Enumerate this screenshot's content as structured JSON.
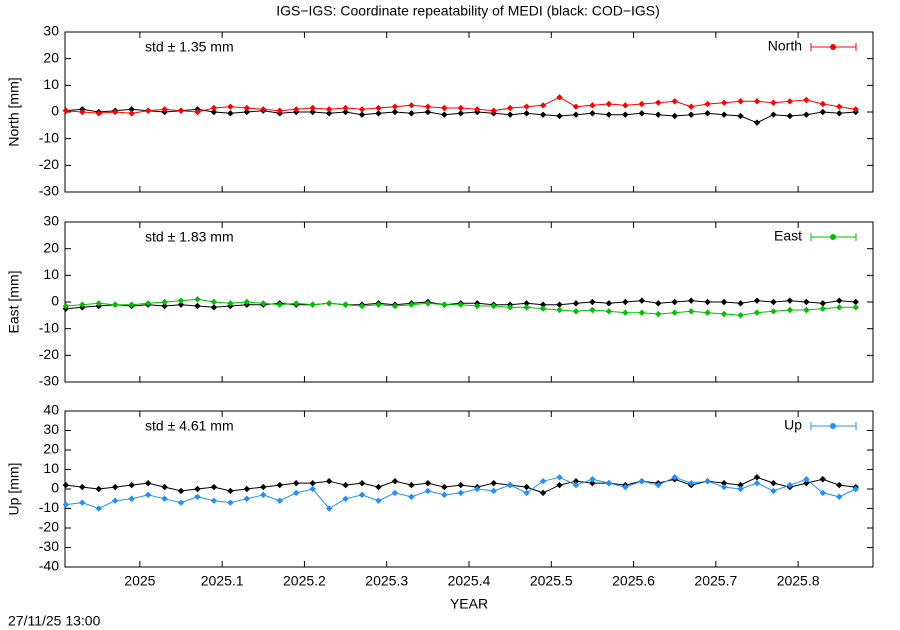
{
  "title": "IGS−IGS: Coordinate repeatability of MEDI (black: COD−IGS)",
  "footer": "27/11/25 13:00",
  "chart_data": [
    {
      "type": "line",
      "ylabel": "North [mm]",
      "annotation": "std ± 1.35 mm",
      "legend": "upper right",
      "xlim": [
        2024.909,
        2025.891
      ],
      "xticks": [
        2025,
        2025.1,
        2025.2,
        2025.3,
        2025.4,
        2025.5,
        2025.6,
        2025.7,
        2025.8
      ],
      "ylim": [
        -30,
        30
      ],
      "yticks": [
        -30,
        -20,
        -10,
        0,
        10,
        20,
        30
      ],
      "x": [
        2024.91,
        2024.93,
        2024.95,
        2024.97,
        2024.99,
        2025.01,
        2025.03,
        2025.05,
        2025.07,
        2025.09,
        2025.11,
        2025.13,
        2025.15,
        2025.17,
        2025.19,
        2025.21,
        2025.23,
        2025.25,
        2025.27,
        2025.29,
        2025.31,
        2025.33,
        2025.35,
        2025.37,
        2025.39,
        2025.41,
        2025.43,
        2025.45,
        2025.47,
        2025.49,
        2025.51,
        2025.53,
        2025.55,
        2025.57,
        2025.59,
        2025.61,
        2025.63,
        2025.65,
        2025.67,
        2025.69,
        2025.71,
        2025.73,
        2025.75,
        2025.77,
        2025.79,
        2025.81,
        2025.83,
        2025.85,
        2025.87
      ],
      "series": [
        {
          "color": "#000000",
          "values": [
            0.5,
            1,
            0,
            0.5,
            1,
            0.5,
            0,
            0.5,
            1,
            0,
            -0.5,
            0,
            0.5,
            -0.5,
            0,
            0,
            -0.5,
            0,
            -1,
            -0.5,
            0,
            -0.5,
            0,
            -1,
            -0.5,
            0,
            -0.5,
            -1,
            -0.5,
            -1,
            -1.5,
            -1,
            -0.5,
            -1,
            -1,
            -0.5,
            -1,
            -1.5,
            -1,
            -0.5,
            -1,
            -1.5,
            -4,
            -1,
            -1.5,
            -1,
            0,
            -0.5,
            0
          ]
        },
        {
          "name": "North",
          "color": "#ff0000",
          "values": [
            0.5,
            0,
            -0.5,
            0,
            -0.5,
            0.5,
            1,
            0.5,
            0,
            1.5,
            2,
            1.5,
            1,
            0.5,
            1,
            1.5,
            1,
            1.5,
            1,
            1.5,
            2,
            2.5,
            2,
            1.5,
            1.5,
            1,
            0.5,
            1.5,
            2,
            2.5,
            5.5,
            2,
            2.5,
            3,
            2.5,
            3,
            3.5,
            4,
            2,
            3,
            3.5,
            4,
            4,
            3.5,
            4,
            4.5,
            3,
            2,
            1
          ]
        }
      ]
    },
    {
      "type": "line",
      "ylabel": "East [mm]",
      "annotation": "std ± 1.83 mm",
      "legend": "upper right",
      "xlim": [
        2024.909,
        2025.891
      ],
      "xticks": [
        2025,
        2025.1,
        2025.2,
        2025.3,
        2025.4,
        2025.5,
        2025.6,
        2025.7,
        2025.8
      ],
      "ylim": [
        -30,
        30
      ],
      "yticks": [
        -30,
        -20,
        -10,
        0,
        10,
        20,
        30
      ],
      "x": [
        2024.91,
        2024.93,
        2024.95,
        2024.97,
        2024.99,
        2025.01,
        2025.03,
        2025.05,
        2025.07,
        2025.09,
        2025.11,
        2025.13,
        2025.15,
        2025.17,
        2025.19,
        2025.21,
        2025.23,
        2025.25,
        2025.27,
        2025.29,
        2025.31,
        2025.33,
        2025.35,
        2025.37,
        2025.39,
        2025.41,
        2025.43,
        2025.45,
        2025.47,
        2025.49,
        2025.51,
        2025.53,
        2025.55,
        2025.57,
        2025.59,
        2025.61,
        2025.63,
        2025.65,
        2025.67,
        2025.69,
        2025.71,
        2025.73,
        2025.75,
        2025.77,
        2025.79,
        2025.81,
        2025.83,
        2025.85,
        2025.87
      ],
      "series": [
        {
          "color": "#000000",
          "values": [
            -2.5,
            -2,
            -1.5,
            -1,
            -1.5,
            -1,
            -1.5,
            -1,
            -1.5,
            -2,
            -1.5,
            -1,
            -1,
            -0.5,
            -1,
            -1,
            -0.5,
            -1,
            -1,
            -0.5,
            -1,
            -0.5,
            0,
            -1,
            -0.5,
            -0.5,
            -1,
            -1,
            -0.5,
            -1,
            -1,
            -0.5,
            0,
            -0.5,
            0,
            0.5,
            -0.5,
            0,
            0.5,
            0,
            0,
            -0.5,
            0.5,
            0,
            0.5,
            0,
            -0.5,
            0.5,
            0
          ]
        },
        {
          "name": "East",
          "color": "#00c000",
          "values": [
            -1.5,
            -1,
            -0.5,
            -1,
            -1,
            -0.5,
            0,
            0.5,
            1,
            0,
            -0.5,
            0,
            -0.5,
            -1,
            -0.5,
            -1,
            -0.5,
            -1,
            -1.5,
            -1,
            -1.5,
            -1,
            -0.5,
            -1,
            -1,
            -1.5,
            -1.5,
            -2,
            -2,
            -2.5,
            -3,
            -3.5,
            -3,
            -3.5,
            -4,
            -4,
            -4.5,
            -4,
            -3.5,
            -4,
            -4.5,
            -5,
            -4,
            -3.5,
            -3,
            -3,
            -2.5,
            -2,
            -2
          ]
        }
      ]
    },
    {
      "type": "line",
      "ylabel": "Up [mm]",
      "xlabel": "YEAR",
      "annotation": "std ± 4.61 mm",
      "legend": "upper right",
      "xlim": [
        2024.909,
        2025.891
      ],
      "xticks": [
        2025,
        2025.1,
        2025.2,
        2025.3,
        2025.4,
        2025.5,
        2025.6,
        2025.7,
        2025.8
      ],
      "ylim": [
        -40,
        40
      ],
      "yticks": [
        -40,
        -30,
        -20,
        -10,
        0,
        10,
        20,
        30,
        40
      ],
      "x": [
        2024.91,
        2024.93,
        2024.95,
        2024.97,
        2024.99,
        2025.01,
        2025.03,
        2025.05,
        2025.07,
        2025.09,
        2025.11,
        2025.13,
        2025.15,
        2025.17,
        2025.19,
        2025.21,
        2025.23,
        2025.25,
        2025.27,
        2025.29,
        2025.31,
        2025.33,
        2025.35,
        2025.37,
        2025.39,
        2025.41,
        2025.43,
        2025.45,
        2025.47,
        2025.49,
        2025.51,
        2025.53,
        2025.55,
        2025.57,
        2025.59,
        2025.61,
        2025.63,
        2025.65,
        2025.67,
        2025.69,
        2025.71,
        2025.73,
        2025.75,
        2025.77,
        2025.79,
        2025.81,
        2025.83,
        2025.85,
        2025.87
      ],
      "series": [
        {
          "color": "#000000",
          "values": [
            2,
            1,
            0,
            1,
            2,
            3,
            1,
            -1,
            0,
            1,
            -1,
            0,
            1,
            2,
            3,
            3,
            4,
            2,
            3,
            1,
            4,
            2,
            3,
            1,
            2,
            1,
            3,
            2,
            1,
            -2,
            2,
            4,
            3,
            3,
            2,
            4,
            3,
            5,
            2,
            4,
            3,
            2,
            6,
            3,
            1,
            3,
            5,
            2,
            1
          ]
        },
        {
          "name": "Up",
          "color": "#1e90ff",
          "values": [
            -8,
            -7,
            -10,
            -6,
            -5,
            -3,
            -5,
            -7,
            -4,
            -6,
            -7,
            -5,
            -3,
            -6,
            -2,
            0,
            -10,
            -5,
            -3,
            -6,
            -2,
            -4,
            -1,
            -3,
            -2,
            0,
            -1,
            2,
            -2,
            4,
            6,
            2,
            5,
            3,
            1,
            4,
            2,
            6,
            3,
            4,
            1,
            0,
            3,
            -1,
            2,
            5,
            -2,
            -4,
            0
          ]
        }
      ]
    }
  ]
}
